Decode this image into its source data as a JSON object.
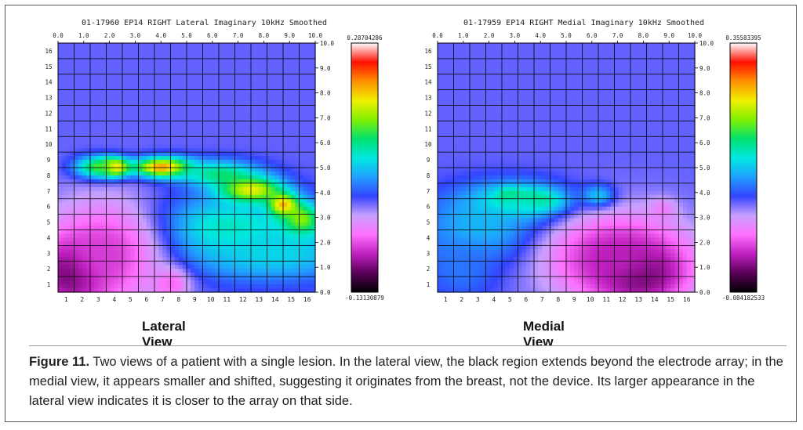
{
  "figure": {
    "caption_label": "Figure 11.",
    "caption_text": " Two views of a patient with a single lesion. In the lateral view, the black region extends beyond the electrode array; in the medial view, it appears smaller and shifted, suggesting it originates from the breast, not the device. Its larger appearance in the lateral view indicates it is closer to the array on that side."
  },
  "chart_data": [
    {
      "type": "heatmap",
      "title": "01-17960 EP14 RIGHT Lateral Imaginary 10kHz Smoothed",
      "view_label": "Lateral View",
      "x_ticks": [
        "1",
        "2",
        "3",
        "4",
        "5",
        "6",
        "7",
        "8",
        "9",
        "10",
        "11",
        "12",
        "13",
        "14",
        "15",
        "16"
      ],
      "y_ticks": [
        "1",
        "2",
        "3",
        "4",
        "5",
        "6",
        "7",
        "8",
        "9",
        "10",
        "11",
        "12",
        "13",
        "14",
        "15",
        "16"
      ],
      "top_ticks": [
        "0.0",
        "1.0",
        "2.0",
        "3.0",
        "4.0",
        "5.0",
        "6.0",
        "7.0",
        "8.0",
        "9.0",
        "10.0"
      ],
      "right_ticks": [
        "0.0",
        "1.0",
        "2.0",
        "3.0",
        "4.0",
        "5.0",
        "6.0",
        "7.0",
        "8.0",
        "9.0",
        "10.0"
      ],
      "colorbar": {
        "max_label": "0.28704286",
        "min_label": "-0.13130879",
        "max": 0.28704286,
        "min": -0.13130879
      },
      "colormap": [
        "#000000",
        "#5a005a",
        "#c020c0",
        "#ff70ff",
        "#c8a0ff",
        "#3344ff",
        "#20a0ff",
        "#00e8e0",
        "#00e070",
        "#80f000",
        "#f0f000",
        "#ff9000",
        "#ff1000",
        "#ffffff"
      ],
      "background": 0.36,
      "hotspots": [
        {
          "x": 4,
          "y": 8.5,
          "sx": 0.6,
          "sy": 0.4,
          "v": 0.98
        },
        {
          "x": 3,
          "y": 8.5,
          "sx": 1.0,
          "sy": 0.5,
          "v": 0.7
        },
        {
          "x": 7,
          "y": 8.5,
          "sx": 1.3,
          "sy": 0.45,
          "v": 0.9
        },
        {
          "x": 10.5,
          "y": 8.1,
          "sx": 1.8,
          "sy": 0.6,
          "v": 0.6
        },
        {
          "x": 12.5,
          "y": 7.0,
          "sx": 1.4,
          "sy": 0.6,
          "v": 0.82
        },
        {
          "x": 14.5,
          "y": 6.0,
          "sx": 0.6,
          "sy": 0.5,
          "v": 1.0
        },
        {
          "x": 15.5,
          "y": 5.0,
          "sx": 0.9,
          "sy": 0.8,
          "v": 0.85
        },
        {
          "x": 11,
          "y": 4.5,
          "sx": 3.5,
          "sy": 1.5,
          "v": 0.58
        },
        {
          "x": 14,
          "y": 3.0,
          "sx": 3.5,
          "sy": 1.2,
          "v": 0.52
        },
        {
          "x": 1.5,
          "y": 1.8,
          "sx": 1.6,
          "sy": 1.6,
          "v": 0.0
        },
        {
          "x": 3.5,
          "y": 3.0,
          "sx": 2.6,
          "sy": 2.5,
          "v": 0.18
        },
        {
          "x": 7.5,
          "y": 1.0,
          "sx": 0.8,
          "sy": 0.7,
          "v": 0.22
        }
      ]
    },
    {
      "type": "heatmap",
      "title": "01-17959 EP14 RIGHT Medial Imaginary 10kHz Smoothed",
      "view_label": "Medial View",
      "x_ticks": [
        "1",
        "2",
        "3",
        "4",
        "5",
        "6",
        "7",
        "8",
        "9",
        "10",
        "11",
        "12",
        "13",
        "14",
        "15",
        "16"
      ],
      "y_ticks": [
        "1",
        "2",
        "3",
        "4",
        "5",
        "6",
        "7",
        "8",
        "9",
        "10",
        "11",
        "12",
        "13",
        "14",
        "15",
        "16"
      ],
      "top_ticks": [
        "0.0",
        "1.0",
        "2.0",
        "3.0",
        "4.0",
        "5.0",
        "6.0",
        "7.0",
        "8.0",
        "9.0",
        "10.0"
      ],
      "right_ticks": [
        "0.0",
        "1.0",
        "2.0",
        "3.0",
        "4.0",
        "5.0",
        "6.0",
        "7.0",
        "8.0",
        "9.0",
        "10.0"
      ],
      "colorbar": {
        "max_label": "0.35583395",
        "min_label": "-0.084182533",
        "max": 0.35583395,
        "min": -0.084182533
      },
      "colormap": [
        "#000000",
        "#5a005a",
        "#c020c0",
        "#ff70ff",
        "#c8a0ff",
        "#3344ff",
        "#20a0ff",
        "#00e8e0",
        "#00e070",
        "#80f000",
        "#f0f000",
        "#ff9000",
        "#ff1000",
        "#ffffff"
      ],
      "background": 0.36,
      "hotspots": [
        {
          "x": 5,
          "y": 6.4,
          "sx": 0.55,
          "sy": 0.4,
          "v": 1.0
        },
        {
          "x": 6.5,
          "y": 6.3,
          "sx": 1.1,
          "sy": 0.45,
          "v": 0.82
        },
        {
          "x": 5.5,
          "y": 6.2,
          "sx": 2.2,
          "sy": 0.9,
          "v": 0.62
        },
        {
          "x": 10.5,
          "y": 6.6,
          "sx": 0.7,
          "sy": 0.5,
          "v": 0.56
        },
        {
          "x": 3.5,
          "y": 4.5,
          "sx": 2.8,
          "sy": 1.6,
          "v": 0.5
        },
        {
          "x": 2.0,
          "y": 2.0,
          "sx": 1.6,
          "sy": 1.4,
          "v": 0.43
        },
        {
          "x": 13,
          "y": 1.8,
          "sx": 2.0,
          "sy": 1.4,
          "v": 0.0
        },
        {
          "x": 11.5,
          "y": 2.8,
          "sx": 3.2,
          "sy": 2.0,
          "v": 0.15
        },
        {
          "x": 14.5,
          "y": 5.8,
          "sx": 0.6,
          "sy": 0.5,
          "v": 0.25
        }
      ]
    }
  ]
}
